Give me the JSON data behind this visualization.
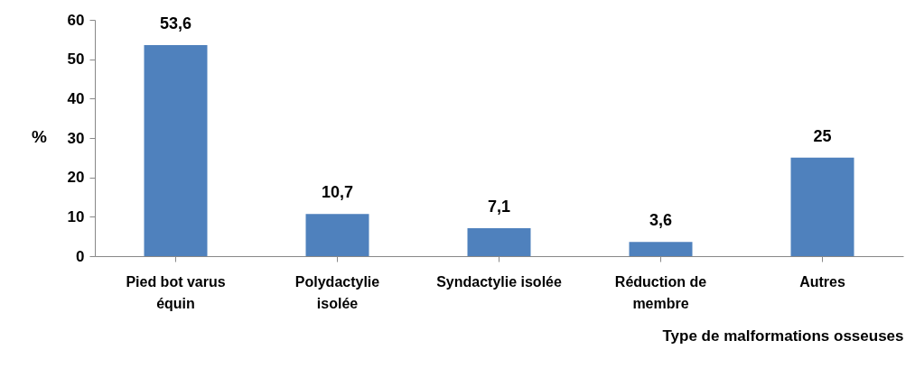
{
  "chart_data": {
    "type": "bar",
    "xlabel": "Type de malformations osseuses",
    "ylabel": "%",
    "categories": [
      "Pied bot varus équin",
      "Polydactylie isolée",
      "Syndactylie isolée",
      "Réduction de membre",
      "Autres"
    ],
    "values": [
      53.6,
      10.7,
      7.1,
      3.6,
      25
    ],
    "color": "#4f81bd",
    "value_labels": [
      "53,6",
      "10,7",
      "7,1",
      "3,6",
      "25"
    ],
    "ylim": [
      0,
      60
    ],
    "yticks": [
      0,
      10,
      20,
      30,
      40,
      50,
      60
    ],
    "grid": false
  }
}
